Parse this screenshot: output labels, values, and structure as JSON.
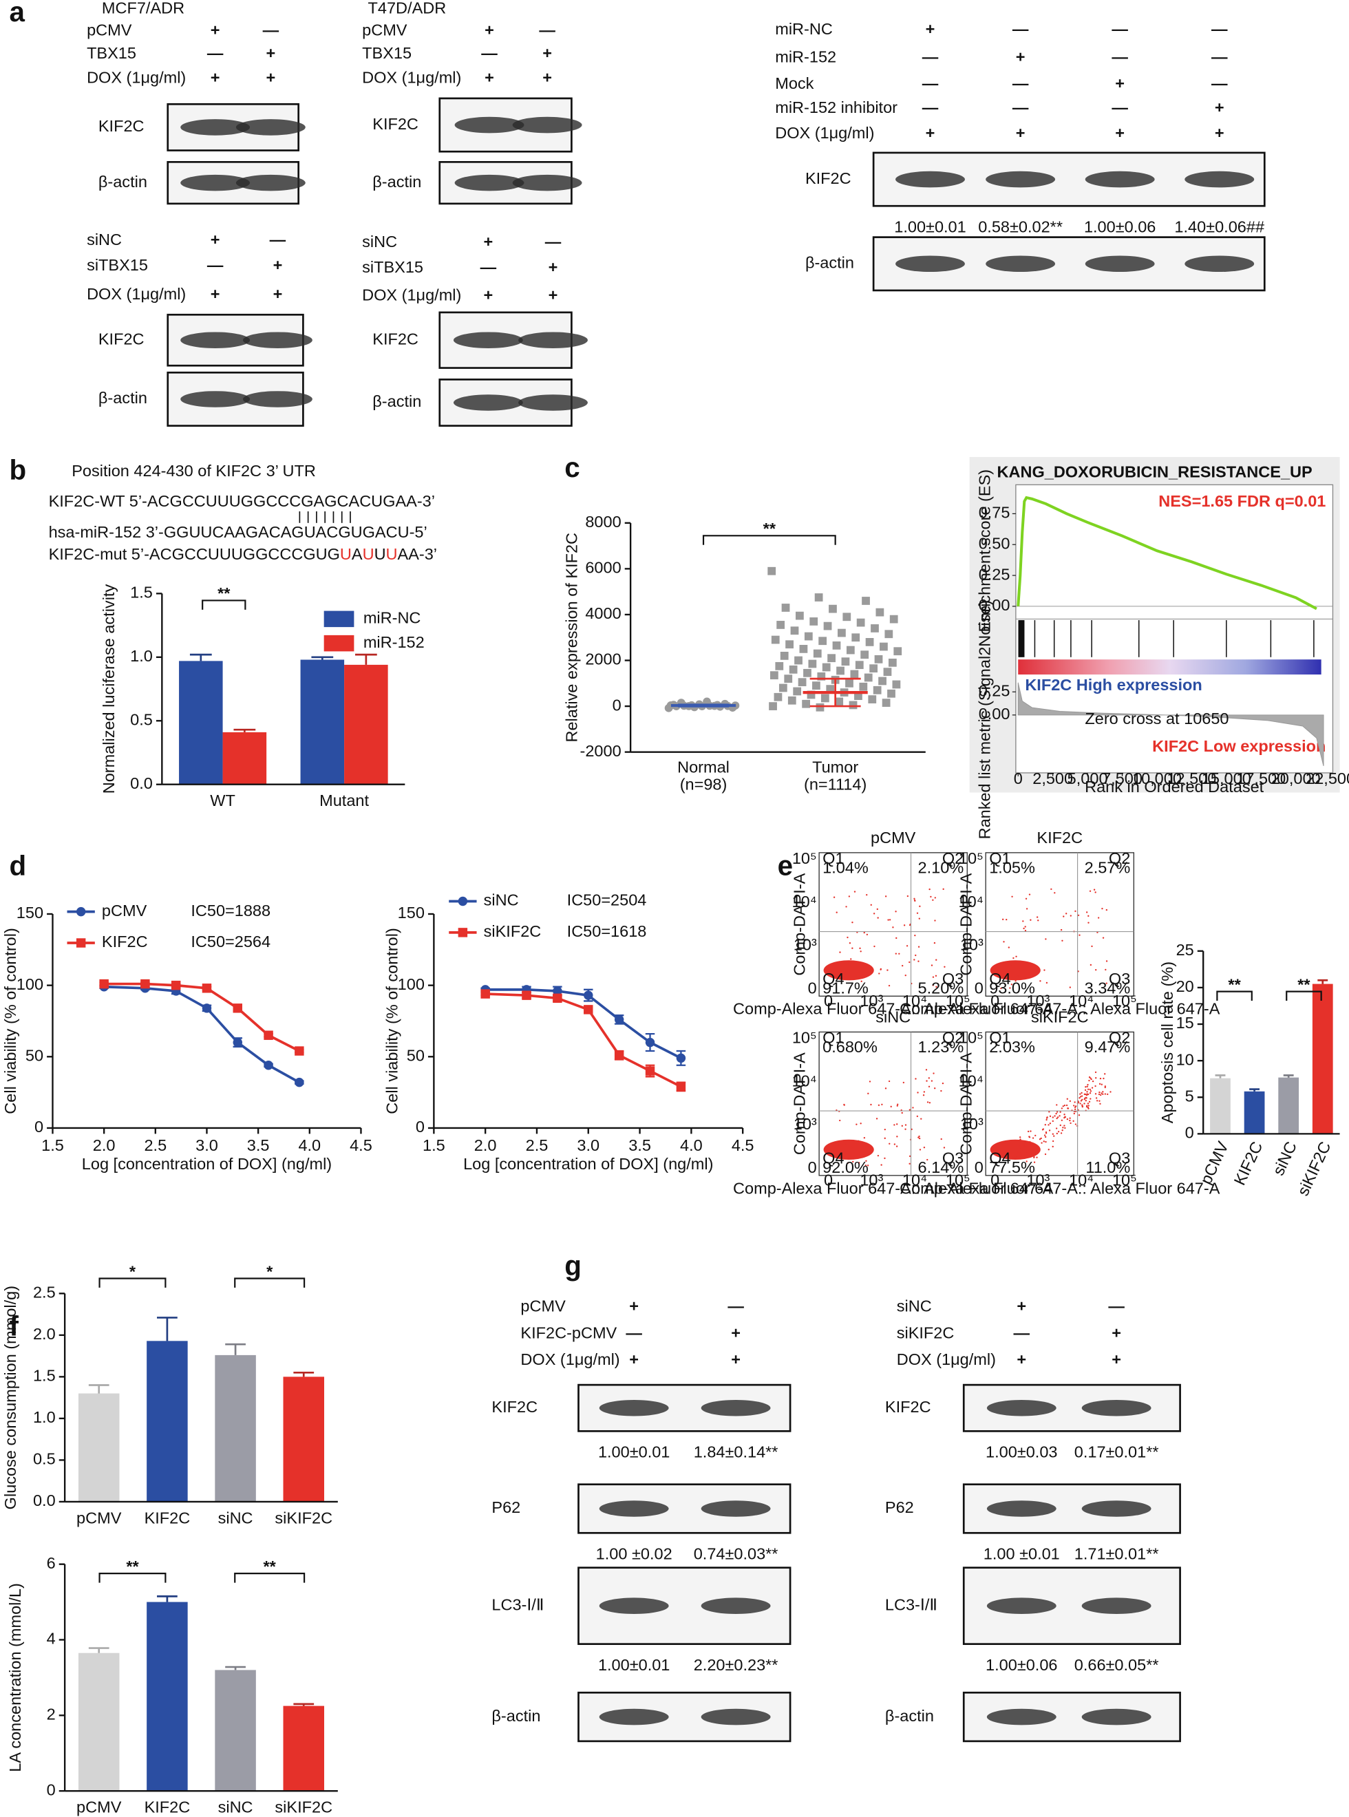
{
  "panels": [
    "a",
    "b",
    "c",
    "d",
    "e",
    "f",
    "g"
  ],
  "blots": [
    {
      "title": "MCF7/ADR",
      "rows": [
        {
          "label": "pCMV",
          "signs": [
            "+",
            "—"
          ]
        },
        {
          "label": "TBX15",
          "signs": [
            "—",
            "+"
          ]
        },
        {
          "label": "DOX (1μg/ml)",
          "signs": [
            "+",
            "+"
          ]
        }
      ],
      "bands": [
        {
          "label": "KIF2C"
        },
        {
          "label": "β-actin"
        }
      ]
    },
    {
      "rows": [
        {
          "label": "siNC",
          "signs": [
            "+",
            "—"
          ]
        },
        {
          "label": "siTBX15",
          "signs": [
            "—",
            "+"
          ]
        },
        {
          "label": "DOX (1μg/ml)",
          "signs": [
            "+",
            "+"
          ]
        }
      ],
      "bands": [
        {
          "label": "KIF2C"
        },
        {
          "label": "β-actin"
        }
      ]
    },
    {
      "title": "T47D/ADR",
      "rows": [
        {
          "label": "pCMV",
          "signs": [
            "+",
            "—"
          ]
        },
        {
          "label": "TBX15",
          "signs": [
            "—",
            "+"
          ]
        },
        {
          "label": "DOX (1μg/ml)",
          "signs": [
            "+",
            "+"
          ]
        }
      ],
      "bands": [
        {
          "label": "KIF2C"
        },
        {
          "label": "β-actin"
        }
      ]
    },
    {
      "rows": [
        {
          "label": "siNC",
          "signs": [
            "+",
            "—"
          ]
        },
        {
          "label": "siTBX15",
          "signs": [
            "—",
            "+"
          ]
        },
        {
          "label": "DOX (1μg/ml)",
          "signs": [
            "+",
            "+"
          ]
        }
      ],
      "bands": [
        {
          "label": "KIF2C"
        },
        {
          "label": "β-actin"
        }
      ]
    },
    {
      "rows": [
        {
          "label": "miR-NC",
          "signs": [
            "+",
            "—",
            "—",
            "—"
          ]
        },
        {
          "label": "miR-152",
          "signs": [
            "—",
            "+",
            "—",
            "—"
          ]
        },
        {
          "label": "Mock",
          "signs": [
            "—",
            "—",
            "+",
            "—"
          ]
        },
        {
          "label": "miR-152 inhibitor",
          "signs": [
            "—",
            "—",
            "—",
            "+"
          ]
        },
        {
          "label": "DOX (1μg/ml)",
          "signs": [
            "+",
            "+",
            "+",
            "+"
          ]
        }
      ],
      "bands": [
        {
          "label": "KIF2C",
          "quant": [
            "1.00±0.01",
            "0.58±0.02**",
            "1.00±0.06",
            "1.40±0.06##"
          ]
        },
        {
          "label": "β-actin"
        }
      ]
    },
    {
      "rows": [
        {
          "label": "pCMV",
          "signs": [
            "+",
            "—"
          ]
        },
        {
          "label": "KIF2C-pCMV",
          "signs": [
            "—",
            "+"
          ]
        },
        {
          "label": "DOX (1μg/ml)",
          "signs": [
            "+",
            "+"
          ]
        }
      ],
      "bands": [
        {
          "label": "KIF2C",
          "quant": [
            "1.00±0.01",
            "1.84±0.14**"
          ]
        },
        {
          "label": "P62",
          "quant": [
            "1.00 ±0.02",
            "0.74±0.03**"
          ]
        },
        {
          "label": "LC3-Ⅰ/Ⅱ",
          "quant": [
            "1.00±0.01",
            "2.20±0.23**"
          ]
        },
        {
          "label": "β-actin"
        }
      ]
    },
    {
      "rows": [
        {
          "label": "siNC",
          "signs": [
            "+",
            "—"
          ]
        },
        {
          "label": "siKIF2C",
          "signs": [
            "—",
            "+"
          ]
        },
        {
          "label": "DOX (1μg/ml)",
          "signs": [
            "+",
            "+"
          ]
        }
      ],
      "bands": [
        {
          "label": "KIF2C",
          "quant": [
            "1.00±0.03",
            "0.17±0.01**"
          ]
        },
        {
          "label": "P62",
          "quant": [
            "1.00 ±0.01",
            "1.71±0.01**"
          ]
        },
        {
          "label": "LC3-Ⅰ/Ⅱ",
          "quant": [
            "1.00±0.06",
            "0.66±0.05**"
          ]
        },
        {
          "label": "β-actin"
        }
      ]
    }
  ],
  "sequence": {
    "title": "Position 424-430 of KIF2C 3’ UTR",
    "wt": "KIF2C-WT 5’-ACGCCUUUGGCCCGAGCACUGAA-3’",
    "mir": "hsa-miR-152 3’-GGUUCAAGACAGUACGUGACU-5’",
    "mut_segments": [
      {
        "text": "KIF2C-mut 5’-ACGCCUUUGGCCCGUG",
        "color": "#111111"
      },
      {
        "text": "U",
        "color": "#e5312a"
      },
      {
        "text": "A",
        "color": "#111111"
      },
      {
        "text": "U",
        "color": "#e5312a"
      },
      {
        "text": "U",
        "color": "#111111"
      },
      {
        "text": "U",
        "color": "#e5312a"
      },
      {
        "text": "AA-3’",
        "color": "#111111"
      }
    ]
  },
  "flow": {
    "quadrants": [
      "Q1",
      "Q2",
      "Q3",
      "Q4"
    ],
    "ylabel": "Comp-DAPI-A",
    "xlabel": "Comp-Alexa Fluor 647-A:: Alexa Fluor 647-A",
    "yticks": [
      "10⁵",
      "10⁴",
      "10³",
      "0"
    ],
    "xticks": [
      "0",
      "10³",
      "10⁴",
      "10⁵"
    ],
    "color": "#e5312a",
    "plots": [
      {
        "title": "pCMV",
        "percents": [
          "1.04%",
          "2.10%",
          "5.20%",
          "91.7%"
        ]
      },
      {
        "title": "KIF2C",
        "percents": [
          "1.05%",
          "2.57%",
          "3.34%",
          "93.0%"
        ]
      },
      {
        "title": "siNC",
        "percents": [
          "0.680%",
          "1.23%",
          "6.14%",
          "92.0%"
        ]
      },
      {
        "title": "siKIF2C",
        "percents": [
          "2.03%",
          "9.47%",
          "11.0%",
          "77.5%"
        ]
      }
    ]
  },
  "chart_data": [
    {
      "type": "bar",
      "ylabel": "Normalized luciferase activity",
      "categories": [
        "WT",
        "Mutant"
      ],
      "series": [
        {
          "name": "miR-NC",
          "color": "#2b4ea2",
          "values": [
            0.97,
            0.98
          ],
          "errors": [
            0.05,
            0.02
          ]
        },
        {
          "name": "miR-152",
          "color": "#e5312a",
          "values": [
            0.41,
            0.94
          ],
          "errors": [
            0.02,
            0.08
          ]
        }
      ],
      "ylim": [
        0,
        1.5
      ],
      "yticks": [
        {
          "value": 0,
          "label": "0.0"
        },
        0.5,
        {
          "value": 1,
          "label": "1.0"
        },
        1.5
      ],
      "annotations": [
        "**"
      ]
    },
    {
      "type": "strip",
      "ylabel": "Relative expression of KIF2C",
      "categories": [
        "Normal",
        "Tumor"
      ],
      "category_notes": [
        "(n=98)",
        "(n=1114)"
      ],
      "points": [
        [
          -80,
          -40,
          -20,
          0,
          0,
          10,
          20,
          20,
          30,
          40,
          50,
          60,
          80,
          100,
          150,
          200,
          -60,
          5,
          15,
          35
        ],
        [
          5900,
          4750,
          4600,
          4300,
          4250,
          4100,
          3950,
          3900,
          3800,
          3700,
          3650,
          3550,
          3500,
          3400,
          3300,
          3200,
          3150,
          3050,
          3000,
          2900,
          2850,
          2800,
          2700,
          2650,
          2600,
          2500,
          2450,
          2400,
          2300,
          2250,
          2200,
          2100,
          2050,
          2000,
          1950,
          1900,
          1850,
          1800,
          1750,
          1700,
          1650,
          1600,
          1550,
          1500,
          1450,
          1400,
          1350,
          1300,
          1250,
          1200,
          1150,
          1100,
          1050,
          1000,
          950,
          900,
          850,
          800,
          750,
          700,
          650,
          600,
          550,
          500,
          450,
          400,
          350,
          300,
          250,
          200,
          150,
          100,
          50,
          0,
          -50
        ]
      ],
      "means": [
        30,
        600
      ],
      "sds": [
        40,
        600
      ],
      "point_color": "#9a9a9a",
      "mean_colors": [
        "#3a5bb0",
        "#e5312a"
      ],
      "ylim": [
        -2000,
        8000
      ],
      "yticks": [
        -2000,
        0,
        2000,
        4000,
        6000,
        8000
      ],
      "annotations": [
        "**"
      ]
    },
    {
      "type": "gsea",
      "title": "KANG_DOXORUBICIN_RESISTANCE_UP",
      "stats": "NES=1.65 FDR q=0.01",
      "high_label": "KIF2C High expression",
      "low_label": "KIF2C Low expression",
      "ylabel": "Enrichment score (ES)",
      "y2label": "Ranked list metric (Signal2Noise)",
      "xlabel": "Rank in Ordered Dataset",
      "zero_cross": "Zero cross at 10650",
      "x": [
        0,
        150,
        300,
        450,
        600,
        1000,
        2000,
        3500,
        5000,
        7500,
        10000,
        12500,
        15000,
        17500,
        20000,
        21500
      ],
      "values": [
        0,
        0.25,
        0.6,
        0.85,
        0.88,
        0.87,
        0.83,
        0.75,
        0.68,
        0.57,
        0.45,
        0.36,
        0.26,
        0.17,
        0.07,
        -0.02
      ],
      "hits": [
        50,
        100,
        150,
        200,
        250,
        300,
        350,
        420,
        1200,
        2600,
        3800,
        5300,
        8700,
        11200,
        15000,
        18200,
        21300
      ],
      "metric_x": [
        0,
        300,
        1000,
        3000,
        6000,
        10650,
        14000,
        18000,
        20500,
        21500,
        22000
      ],
      "metric": [
        0.35,
        0.15,
        0.08,
        0.04,
        0.02,
        0,
        -0.02,
        -0.06,
        -0.12,
        -0.25,
        -0.55
      ],
      "color": "#7ed321",
      "xlim": [
        0,
        22500
      ],
      "xticks": [
        0,
        {
          "value": 2500,
          "label": "2,500"
        },
        {
          "value": 5000,
          "label": "5,000"
        },
        {
          "value": 7500,
          "label": "7,500"
        },
        {
          "value": 10000,
          "label": "10,000"
        },
        {
          "value": 12500,
          "label": "12,500"
        },
        {
          "value": 15000,
          "label": "15,000"
        },
        {
          "value": 17500,
          "label": "17,500"
        },
        {
          "value": 20000,
          "label": "20,000"
        },
        {
          "value": 22500,
          "label": "22,500"
        }
      ],
      "ylim": [
        -0.1,
        0.9
      ],
      "yticks": [
        {
          "value": 0,
          "label": "0.00"
        },
        0.25,
        {
          "value": 0.5,
          "label": "0.50"
        },
        0.75
      ],
      "y2lim": [
        -0.6,
        0.4
      ],
      "y2ticks": [
        0.25,
        {
          "value": 0,
          "label": "0.00"
        }
      ]
    },
    {
      "type": "line",
      "xlabel": "Log [concentration of DOX] (ng/ml)",
      "ylabel": "Cell viability (% of control)",
      "x": [
        2.0,
        2.4,
        2.7,
        3.0,
        3.3,
        3.6,
        3.9
      ],
      "series": [
        {
          "name": "pCMV",
          "note": "IC50=1888",
          "color": "#2b4ea2",
          "values": [
            99,
            98,
            96,
            84,
            60,
            44,
            32
          ],
          "errors": [
            1,
            1,
            2,
            2,
            3,
            1,
            1
          ]
        },
        {
          "name": "KIF2C",
          "note": "IC50=2564",
          "color": "#e5312a",
          "values": [
            101,
            101,
            100,
            98,
            84,
            65,
            54
          ],
          "errors": [
            1,
            1,
            1,
            1,
            2,
            1,
            1
          ]
        }
      ],
      "xlim": [
        1.5,
        4.5
      ],
      "xticks": [
        1.5,
        {
          "value": 2,
          "label": "2.0"
        },
        2.5,
        {
          "value": 3,
          "label": "3.0"
        },
        3.5,
        {
          "value": 4,
          "label": "4.0"
        },
        4.5
      ],
      "ylim": [
        0,
        150
      ],
      "yticks": [
        0,
        50,
        100,
        150
      ]
    },
    {
      "type": "line",
      "xlabel": "Log [concentration of DOX] (ng/ml)",
      "ylabel": "Cell viability (% of control)",
      "x": [
        2.0,
        2.4,
        2.7,
        3.0,
        3.3,
        3.6,
        3.9
      ],
      "series": [
        {
          "name": "siNC",
          "note": "IC50=2504",
          "color": "#2b4ea2",
          "values": [
            97,
            97,
            96,
            93,
            76,
            60,
            49
          ],
          "errors": [
            1,
            2,
            3,
            4,
            3,
            6,
            5
          ]
        },
        {
          "name": "siKIF2C",
          "note": "IC50=1618",
          "color": "#e5312a",
          "values": [
            94,
            93,
            91,
            83,
            51,
            40,
            29
          ],
          "errors": [
            1,
            2,
            2,
            2,
            3,
            4,
            3
          ]
        }
      ],
      "xlim": [
        1.5,
        4.5
      ],
      "xticks": [
        1.5,
        {
          "value": 2,
          "label": "2.0"
        },
        2.5,
        {
          "value": 3,
          "label": "3.0"
        },
        3.5,
        {
          "value": 4,
          "label": "4.0"
        },
        4.5
      ],
      "ylim": [
        0,
        150
      ],
      "yticks": [
        0,
        50,
        100,
        150
      ]
    },
    {
      "type": "bar",
      "ylabel": "Apoptosis cell rate (%)",
      "categories": [
        "pCMV",
        "KIF2C",
        "siNC",
        "siKIF2C"
      ],
      "values": [
        7.6,
        5.8,
        7.7,
        20.5
      ],
      "errors": [
        0.4,
        0.3,
        0.3,
        0.5
      ],
      "colors": [
        "#d4d4d4",
        "#2b4ea2",
        "#9b9ca6",
        "#e5312a"
      ],
      "ylim": [
        0,
        25
      ],
      "yticks": [
        0,
        5,
        10,
        15,
        20,
        25
      ],
      "annotations": [
        "**",
        "**"
      ]
    },
    {
      "type": "bar",
      "ylabel": "Glucose consumption (mmol/g)",
      "categories": [
        "pCMV",
        "KIF2C",
        "siNC",
        "siKIF2C"
      ],
      "values": [
        1.3,
        1.93,
        1.76,
        1.5
      ],
      "errors": [
        0.1,
        0.28,
        0.13,
        0.05
      ],
      "colors": [
        "#d4d4d4",
        "#2b4ea2",
        "#9b9ca6",
        "#e5312a"
      ],
      "ylim": [
        0,
        2.5
      ],
      "yticks": [
        {
          "value": 0,
          "label": "0.0"
        },
        0.5,
        {
          "value": 1,
          "label": "1.0"
        },
        1.5,
        {
          "value": 2,
          "label": "2.0"
        },
        2.5
      ],
      "annotations": [
        "*",
        "*"
      ]
    },
    {
      "type": "bar",
      "ylabel": "LA concentration (mmol/L)",
      "categories": [
        "pCMV",
        "KIF2C",
        "siNC",
        "siKIF2C"
      ],
      "values": [
        3.65,
        5.0,
        3.2,
        2.25
      ],
      "errors": [
        0.13,
        0.15,
        0.08,
        0.05
      ],
      "colors": [
        "#d4d4d4",
        "#2b4ea2",
        "#9b9ca6",
        "#e5312a"
      ],
      "ylim": [
        0,
        6
      ],
      "yticks": [
        0,
        2,
        4,
        6
      ],
      "annotations": [
        "**",
        "**"
      ]
    }
  ]
}
